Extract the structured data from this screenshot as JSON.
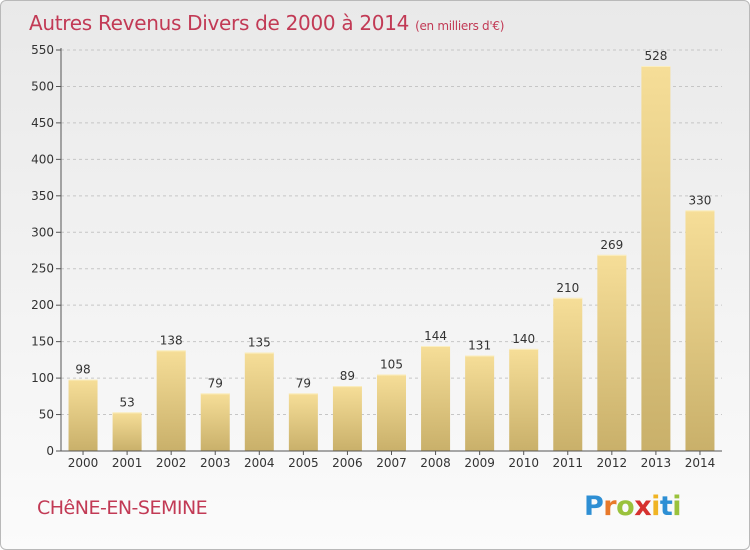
{
  "header": {
    "title": "Autres Revenus Divers de 2000 à 2014",
    "subtitle": "(en milliers d'€)"
  },
  "footer": {
    "place": "CHêNE-EN-SEMINE",
    "logo_letters": [
      {
        "ch": "P",
        "color": "#2e8fd4"
      },
      {
        "ch": "r",
        "color": "#e8792a"
      },
      {
        "ch": "o",
        "color": "#9ac23c"
      },
      {
        "ch": "x",
        "color": "#d6312f"
      },
      {
        "ch": "i",
        "color": "#f0b424"
      },
      {
        "ch": "t",
        "color": "#2e8fd4"
      },
      {
        "ch": "i",
        "color": "#9ac23c"
      }
    ]
  },
  "chart_data": {
    "type": "bar",
    "categories": [
      "2000",
      "2001",
      "2002",
      "2003",
      "2004",
      "2005",
      "2006",
      "2007",
      "2008",
      "2009",
      "2010",
      "2011",
      "2012",
      "2013",
      "2014"
    ],
    "values": [
      98,
      53,
      138,
      79,
      135,
      79,
      89,
      105,
      144,
      131,
      140,
      210,
      269,
      528,
      330
    ],
    "data_labels": [
      "98",
      "53",
      "138",
      "79",
      "135",
      "79",
      "89",
      "105",
      "144",
      "131",
      "140",
      "210",
      "269",
      "528",
      "330"
    ],
    "ylim": [
      0,
      550
    ],
    "yticks": [
      "0",
      "50",
      "100",
      "150",
      "200",
      "250",
      "300",
      "350",
      "400",
      "450",
      "500",
      "550"
    ],
    "grid": true,
    "colors": {
      "bar_light": "#f6de98",
      "bar_dark": "#c9b06a",
      "grid": "#c6c6c6",
      "axis": "#555555",
      "text": "#333333"
    }
  }
}
